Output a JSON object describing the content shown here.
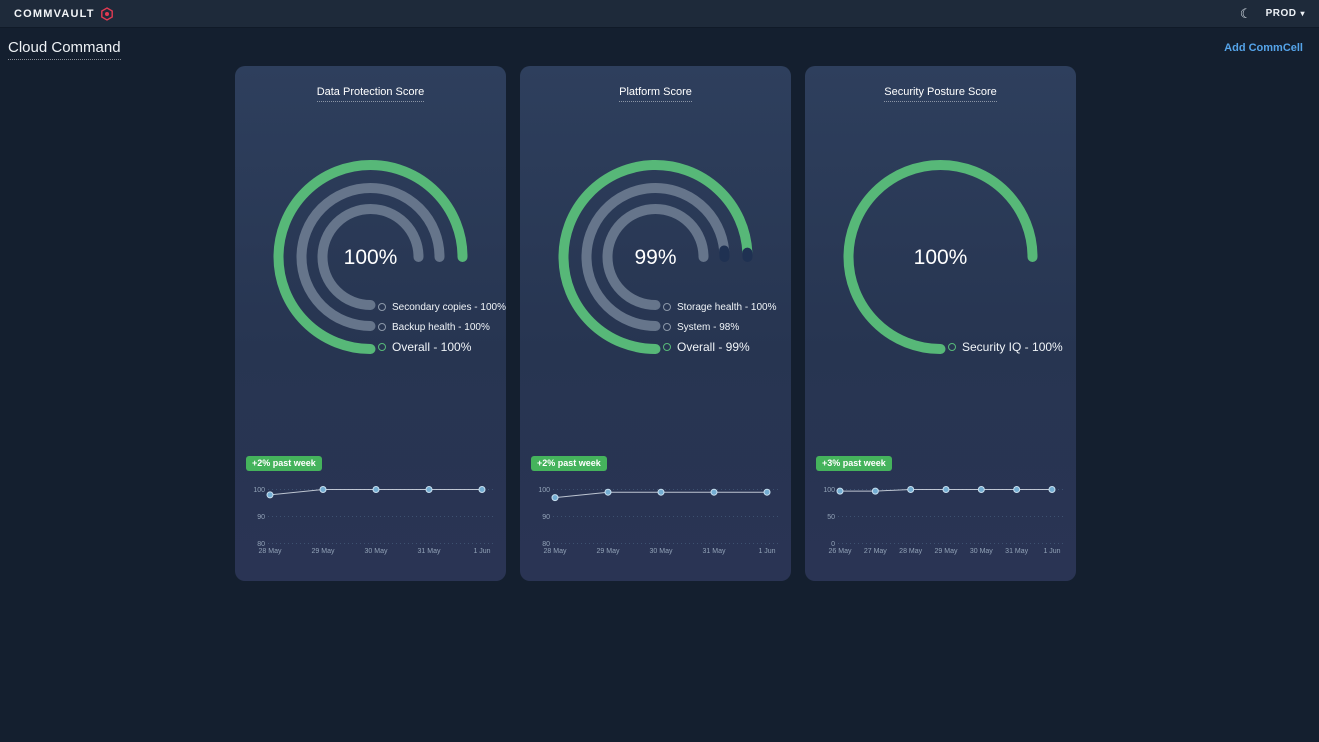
{
  "topbar": {
    "logo_text": "COMMVAULT",
    "env_label": "PROD"
  },
  "page": {
    "title": "Cloud Command",
    "add_commcell_label": "Add CommCell"
  },
  "colors": {
    "green": "#57b878",
    "badge_green": "#45b35c",
    "ring_gray": "#66758b",
    "ring_rest": "#1f3152",
    "legend_gray": "#8b97a8",
    "link_blue": "#55a4ea",
    "logo_red": "#e23a52",
    "grid": "#3d5170",
    "axis_text": "#93a3b8",
    "line": "#d7dee8",
    "point_fill": "#74add2",
    "point_stroke": "#c9e0f0"
  },
  "cards": [
    {
      "title": "Data Protection Score",
      "center_value": "100%",
      "badge": "+2% past week",
      "rings": [
        {
          "label": "Secondary copies - 100%",
          "pct": 100,
          "color": "gray"
        },
        {
          "label": "Backup health - 100%",
          "pct": 100,
          "color": "gray"
        },
        {
          "label": "Overall - 100%",
          "pct": 100,
          "color": "green"
        }
      ],
      "trend": {
        "type": "line",
        "x": [
          "28 May",
          "29 May",
          "30 May",
          "31 May",
          "1 Jun"
        ],
        "values": [
          98,
          100,
          100,
          100,
          100
        ],
        "yticks": [
          100,
          90,
          80
        ],
        "ylim": [
          80,
          100
        ]
      }
    },
    {
      "title": "Platform Score",
      "center_value": "99%",
      "badge": "+2% past week",
      "rings": [
        {
          "label": "Storage health - 100%",
          "pct": 100,
          "color": "gray"
        },
        {
          "label": "System - 98%",
          "pct": 98,
          "color": "gray"
        },
        {
          "label": "Overall - 99%",
          "pct": 99,
          "color": "green"
        }
      ],
      "trend": {
        "type": "line",
        "x": [
          "28 May",
          "29 May",
          "30 May",
          "31 May",
          "1 Jun"
        ],
        "values": [
          97,
          99,
          99,
          99,
          99
        ],
        "yticks": [
          100,
          90,
          80
        ],
        "ylim": [
          80,
          100
        ]
      }
    },
    {
      "title": "Security Posture Score",
      "center_value": "100%",
      "badge": "+3% past week",
      "rings": [
        {
          "label": "Security IQ - 100%",
          "pct": 100,
          "color": "green"
        }
      ],
      "trend": {
        "type": "line",
        "x": [
          "26 May",
          "27 May",
          "28 May",
          "29 May",
          "30 May",
          "31 May",
          "1 Jun"
        ],
        "values": [
          97,
          97,
          100,
          100,
          100,
          100,
          100
        ],
        "yticks": [
          100,
          50,
          0
        ],
        "ylim": [
          0,
          100
        ]
      }
    }
  ]
}
